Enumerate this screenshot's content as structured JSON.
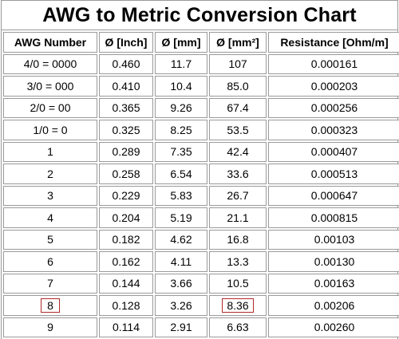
{
  "title": "AWG to Metric Conversion Chart",
  "headers": [
    "AWG Number",
    "Ø [Inch]",
    "Ø [mm]",
    "Ø [mm²]",
    "Resistance [Ohm/m]"
  ],
  "rows": [
    [
      "4/0 = 0000",
      "0.460",
      "11.7",
      "107",
      "0.000161"
    ],
    [
      "3/0 = 000",
      "0.410",
      "10.4",
      "85.0",
      "0.000203"
    ],
    [
      "2/0 = 00",
      "0.365",
      "9.26",
      "67.4",
      "0.000256"
    ],
    [
      "1/0 = 0",
      "0.325",
      "8.25",
      "53.5",
      "0.000323"
    ],
    [
      "1",
      "0.289",
      "7.35",
      "42.4",
      "0.000407"
    ],
    [
      "2",
      "0.258",
      "6.54",
      "33.6",
      "0.000513"
    ],
    [
      "3",
      "0.229",
      "5.83",
      "26.7",
      "0.000647"
    ],
    [
      "4",
      "0.204",
      "5.19",
      "21.1",
      "0.000815"
    ],
    [
      "5",
      "0.182",
      "4.62",
      "16.8",
      "0.00103"
    ],
    [
      "6",
      "0.162",
      "4.11",
      "13.3",
      "0.00130"
    ],
    [
      "7",
      "0.144",
      "3.66",
      "10.5",
      "0.00163"
    ],
    [
      "8",
      "0.128",
      "3.26",
      "8.36",
      "0.00206"
    ],
    [
      "9",
      "0.114",
      "2.91",
      "6.63",
      "0.00260"
    ]
  ],
  "highlight": {
    "row_index": 11,
    "columns": [
      0,
      3
    ],
    "color": "#b22a2a"
  },
  "colors": {
    "border": "#9a9a9a",
    "background": "#ffffff",
    "text": "#000000"
  }
}
